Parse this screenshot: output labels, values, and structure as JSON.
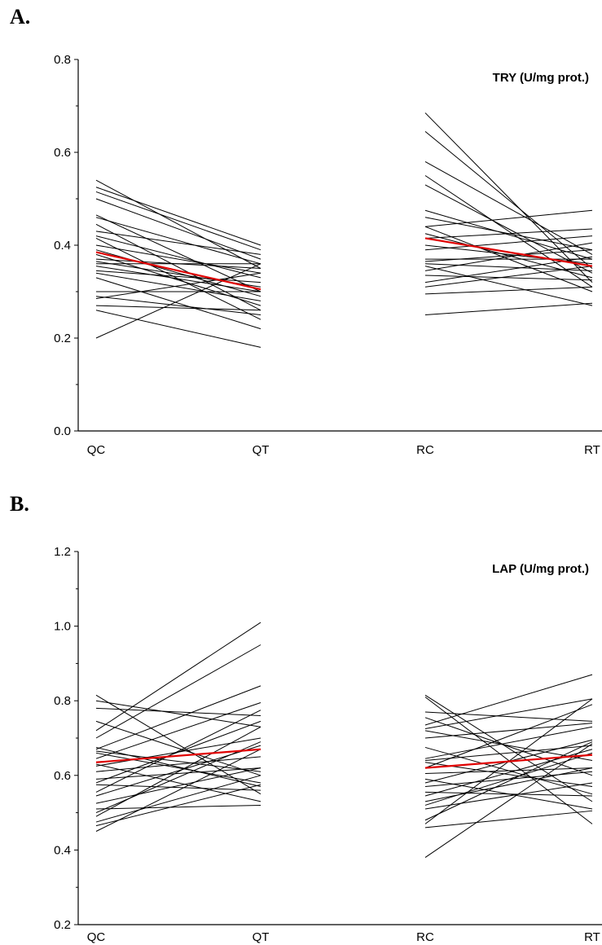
{
  "panels": [
    {
      "label": "A."
    },
    {
      "label": "B."
    }
  ],
  "colors": {
    "individual": "#000000",
    "mean": "#e00000"
  },
  "chart_data": [
    {
      "type": "line",
      "title": "TRY (U/mg prot.)",
      "categories": [
        "QC",
        "QT",
        "RC",
        "RT"
      ],
      "ylim": [
        0.0,
        0.8
      ],
      "yticks": [
        0.0,
        0.2,
        0.4,
        0.6,
        0.8
      ],
      "ytick_labels": [
        "0.0",
        "0.2",
        "0.4",
        "0.6",
        "0.8"
      ],
      "groups": [
        {
          "from": "QC",
          "to": "QT",
          "pairs": [
            [
              0.54,
              0.35
            ],
            [
              0.525,
              0.4
            ],
            [
              0.515,
              0.39
            ],
            [
              0.5,
              0.37
            ],
            [
              0.465,
              0.3
            ],
            [
              0.46,
              0.36
            ],
            [
              0.445,
              0.26
            ],
            [
              0.43,
              0.38
            ],
            [
              0.42,
              0.33
            ],
            [
              0.415,
              0.24
            ],
            [
              0.4,
              0.34
            ],
            [
              0.39,
              0.29
            ],
            [
              0.38,
              0.27
            ],
            [
              0.37,
              0.35
            ],
            [
              0.365,
              0.31
            ],
            [
              0.36,
              0.36
            ],
            [
              0.355,
              0.3
            ],
            [
              0.345,
              0.32
            ],
            [
              0.34,
              0.28
            ],
            [
              0.33,
              0.22
            ],
            [
              0.3,
              0.3
            ],
            [
              0.29,
              0.25
            ],
            [
              0.285,
              0.34
            ],
            [
              0.27,
              0.26
            ],
            [
              0.26,
              0.18
            ],
            [
              0.2,
              0.36
            ]
          ],
          "mean": [
            0.385,
            0.305
          ]
        },
        {
          "from": "RC",
          "to": "RT",
          "pairs": [
            [
              0.685,
              0.32
            ],
            [
              0.645,
              0.35
            ],
            [
              0.58,
              0.38
            ],
            [
              0.55,
              0.31
            ],
            [
              0.53,
              0.34
            ],
            [
              0.475,
              0.37
            ],
            [
              0.46,
              0.39
            ],
            [
              0.44,
              0.475
            ],
            [
              0.44,
              0.3
            ],
            [
              0.425,
              0.33
            ],
            [
              0.415,
              0.435
            ],
            [
              0.4,
              0.36
            ],
            [
              0.39,
              0.42
            ],
            [
              0.37,
              0.37
            ],
            [
              0.365,
              0.39
            ],
            [
              0.36,
              0.345
            ],
            [
              0.355,
              0.27
            ],
            [
              0.345,
              0.405
            ],
            [
              0.335,
              0.325
            ],
            [
              0.32,
              0.375
            ],
            [
              0.31,
              0.355
            ],
            [
              0.295,
              0.31
            ],
            [
              0.25,
              0.275
            ]
          ],
          "mean": [
            0.415,
            0.355
          ]
        }
      ]
    },
    {
      "type": "line",
      "title": "LAP (U/mg prot.)",
      "categories": [
        "QC",
        "QT",
        "RC",
        "RT"
      ],
      "ylim": [
        0.2,
        1.2
      ],
      "yticks": [
        0.2,
        0.4,
        0.6,
        0.8,
        1.0,
        1.2
      ],
      "ytick_labels": [
        "0.2",
        "0.4",
        "0.6",
        "0.8",
        "1.0",
        "1.2"
      ],
      "groups": [
        {
          "from": "QC",
          "to": "QT",
          "pairs": [
            [
              0.815,
              0.55
            ],
            [
              0.8,
              0.73
            ],
            [
              0.78,
              0.76
            ],
            [
              0.745,
              0.6
            ],
            [
              0.72,
              1.01
            ],
            [
              0.7,
              0.95
            ],
            [
              0.675,
              0.57
            ],
            [
              0.67,
              0.84
            ],
            [
              0.665,
              0.61
            ],
            [
              0.66,
              0.58
            ],
            [
              0.645,
              0.795
            ],
            [
              0.63,
              0.53
            ],
            [
              0.625,
              0.7
            ],
            [
              0.61,
              0.65
            ],
            [
              0.59,
              0.62
            ],
            [
              0.58,
              0.745
            ],
            [
              0.575,
              0.56
            ],
            [
              0.555,
              0.775
            ],
            [
              0.545,
              0.68
            ],
            [
              0.525,
              0.62
            ],
            [
              0.51,
              0.52
            ],
            [
              0.5,
              0.69
            ],
            [
              0.49,
              0.73
            ],
            [
              0.475,
              0.6
            ],
            [
              0.465,
              0.575
            ],
            [
              0.45,
              0.67
            ]
          ],
          "mean": [
            0.635,
            0.67
          ]
        },
        {
          "from": "RC",
          "to": "RT",
          "pairs": [
            [
              0.815,
              0.53
            ],
            [
              0.81,
              0.47
            ],
            [
              0.77,
              0.745
            ],
            [
              0.755,
              0.6
            ],
            [
              0.735,
              0.87
            ],
            [
              0.725,
              0.805
            ],
            [
              0.72,
              0.64
            ],
            [
              0.7,
              0.74
            ],
            [
              0.675,
              0.55
            ],
            [
              0.645,
              0.73
            ],
            [
              0.64,
              0.68
            ],
            [
              0.635,
              0.57
            ],
            [
              0.62,
              0.79
            ],
            [
              0.605,
              0.62
            ],
            [
              0.59,
              0.51
            ],
            [
              0.58,
              0.695
            ],
            [
              0.57,
              0.61
            ],
            [
              0.555,
              0.545
            ],
            [
              0.545,
              0.67
            ],
            [
              0.53,
              0.62
            ],
            [
              0.52,
              0.66
            ],
            [
              0.51,
              0.58
            ],
            [
              0.48,
              0.69
            ],
            [
              0.47,
              0.805
            ],
            [
              0.46,
              0.505
            ],
            [
              0.38,
              0.685
            ]
          ],
          "mean": [
            0.62,
            0.655
          ]
        }
      ]
    }
  ]
}
